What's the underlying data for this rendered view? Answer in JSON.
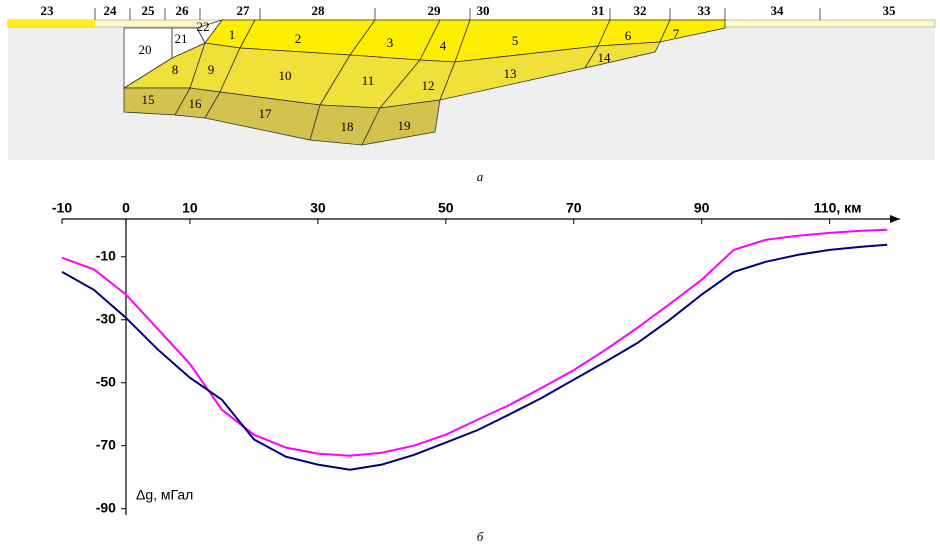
{
  "diagram": {
    "blocks": [
      "1",
      "2",
      "3",
      "4",
      "5",
      "6",
      "7",
      "8",
      "9",
      "10",
      "11",
      "12",
      "13",
      "14",
      "15",
      "16",
      "17",
      "18",
      "19",
      "20",
      "21",
      "22"
    ],
    "surface": [
      "23",
      "24",
      "25",
      "26",
      "27",
      "28",
      "29",
      "30",
      "31",
      "32",
      "33",
      "34",
      "35"
    ],
    "caption": "а"
  },
  "chart_data": {
    "type": "line",
    "caption": "б",
    "y_label": "Δg, мГал",
    "x": [
      -10,
      -5,
      0,
      5,
      10,
      15,
      20,
      25,
      30,
      35,
      40,
      45,
      50,
      55,
      60,
      65,
      70,
      75,
      80,
      85,
      90,
      95,
      100,
      105,
      110,
      115,
      119
    ],
    "series": [
      {
        "color": "#ff00ff",
        "values": [
          -10.3,
          -14,
          -22,
          -33,
          -44,
          -58.6,
          -66.5,
          -70.6,
          -72.5,
          -73.2,
          -72.2,
          -70,
          -66.5,
          -61.7,
          -57,
          -51.6,
          -46,
          -39.5,
          -32.5,
          -25,
          -17.3,
          -7.8,
          -4.6,
          -3.3,
          -2.4,
          -1.7,
          -1.4
        ]
      },
      {
        "color": "#000080",
        "values": [
          -14.8,
          -20.5,
          -29.4,
          -39.5,
          -48.4,
          -55.4,
          -68,
          -73.5,
          -76,
          -77.6,
          -76,
          -72.9,
          -69,
          -65,
          -60,
          -54.8,
          -49,
          -43.3,
          -37.3,
          -30,
          -22,
          -14.8,
          -11.6,
          -9.4,
          -7.8,
          -6.8,
          -6.2
        ]
      }
    ],
    "xlim": [
      -10,
      121
    ],
    "ylim": [
      -92,
      2
    ],
    "xticks": [
      -10,
      0,
      10,
      30,
      50,
      70,
      90,
      {
        "value": 110,
        "label": "110, км"
      }
    ],
    "yticks": [
      -10,
      -30,
      -50,
      -70,
      -90
    ]
  }
}
